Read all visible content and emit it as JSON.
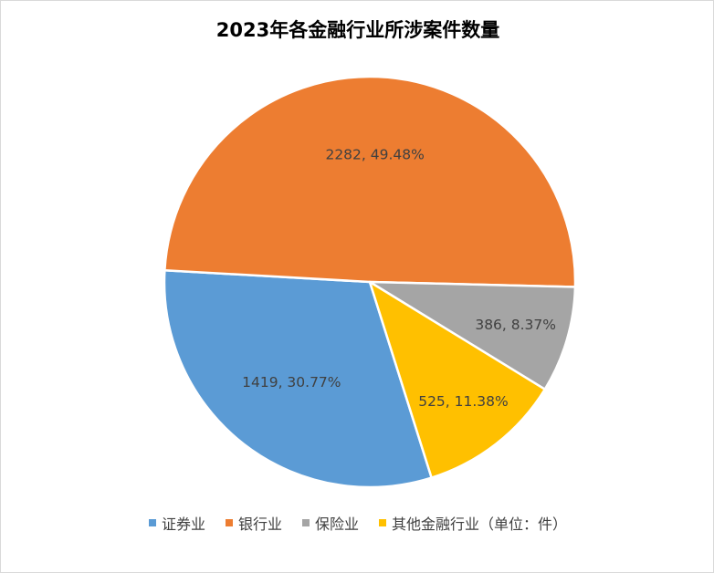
{
  "chart_data": {
    "type": "pie",
    "title": "2023年各金融行业所涉案件数量",
    "legend_position": "bottom",
    "slices": [
      {
        "name": "证券业",
        "value": 1419,
        "percent": "30.77%",
        "label": "1419, 30.77%",
        "color": "#5B9BD5"
      },
      {
        "name": "银行业",
        "value": 2282,
        "percent": "49.48%",
        "label": "2282, 49.48%",
        "color": "#ED7D31"
      },
      {
        "name": "保险业",
        "value": 386,
        "percent": "8.37%",
        "label": "386, 8.37%",
        "color": "#A5A5A5"
      },
      {
        "name": "其他金融行业（单位：件）",
        "value": 525,
        "percent": "11.38%",
        "label": "525, 11.38%",
        "color": "#FFC000"
      }
    ]
  }
}
